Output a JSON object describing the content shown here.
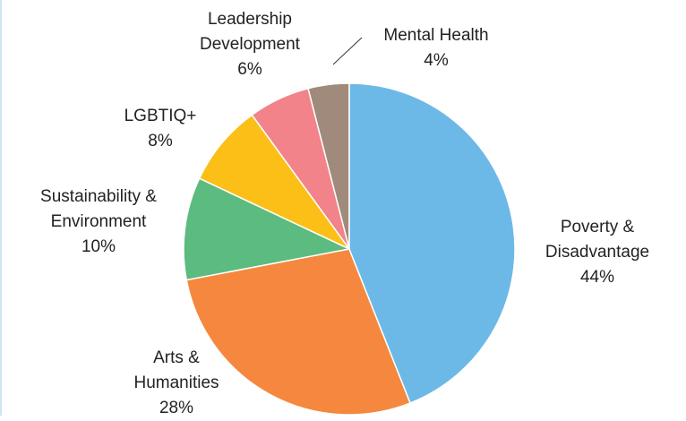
{
  "chart_data": {
    "type": "pie",
    "categories": [
      "Poverty & Disadvantage",
      "Arts & Humanities",
      "Sustainability & Environment",
      "LGBTIQ+",
      "Leadership Development",
      "Mental Health"
    ],
    "values": [
      44,
      28,
      10,
      8,
      6,
      4
    ],
    "value_labels": [
      "44%",
      "28%",
      "10%",
      "8%",
      "6%",
      "4%"
    ],
    "colors": [
      "#6cb9e8",
      "#f5883e",
      "#5cbb7f",
      "#fbbf17",
      "#f2838a",
      "#a08a7b"
    ]
  }
}
